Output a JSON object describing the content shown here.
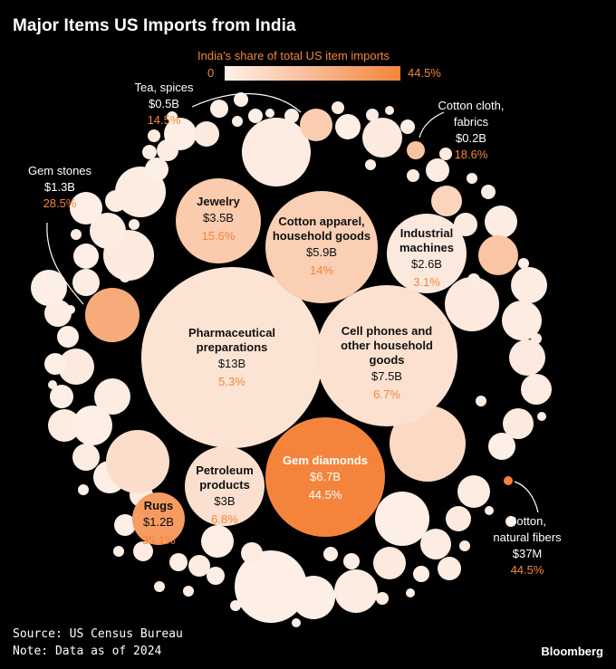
{
  "title": "Major Items US Imports from India",
  "legend": {
    "title": "India's share of total US item imports",
    "min": "0",
    "max": "44.5%",
    "color_low": "#fdf1ea",
    "color_high": "#f4843c"
  },
  "footer": {
    "source": "Source: US Census Bureau",
    "note": "Note: Data as of 2024",
    "brand": "Bloomberg"
  },
  "colors": {
    "accent": "#f4843c",
    "background": "#000000"
  },
  "chart_data": {
    "type": "packed-bubble",
    "size_measure": "US import value from India (2024)",
    "color_measure": "India's share of total US item imports (%)",
    "color_range": [
      0,
      44.5
    ],
    "items": [
      {
        "name": "Pharmaceutical preparations",
        "value": "$13B",
        "share": "5.3%"
      },
      {
        "name": "Cell phones and other household goods",
        "value": "$7.5B",
        "share": "6.7%"
      },
      {
        "name": "Gem diamonds",
        "value": "$6.7B",
        "share": "44.5%"
      },
      {
        "name": "Cotton apparel, household goods",
        "value": "$5.9B",
        "share": "14%"
      },
      {
        "name": "Jewelry",
        "value": "$3.5B",
        "share": "15.6%"
      },
      {
        "name": "Petroleum products",
        "value": "$3B",
        "share": "6.8%"
      },
      {
        "name": "Industrial machines",
        "value": "$2.6B",
        "share": "3.1%"
      },
      {
        "name": "Gem stones",
        "value": "$1.3B",
        "share": "28.5%"
      },
      {
        "name": "Rugs",
        "value": "$1.2B",
        "share": "35.1%"
      },
      {
        "name": "Tea, spices",
        "value": "$0.5B",
        "share": "14.5%"
      },
      {
        "name": "Cotton cloth, fabrics",
        "value": "$0.2B",
        "share": "18.6%"
      },
      {
        "name": "Cotton, natural fibers",
        "value": "$37M",
        "share": "44.5%"
      }
    ]
  }
}
